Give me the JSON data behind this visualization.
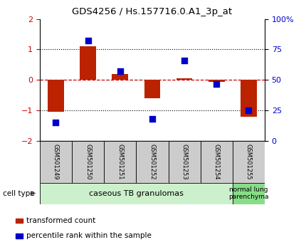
{
  "title": "GDS4256 / Hs.157716.0.A1_3p_at",
  "samples": [
    "GSM501249",
    "GSM501250",
    "GSM501251",
    "GSM501252",
    "GSM501253",
    "GSM501254",
    "GSM501255"
  ],
  "transformed_counts": [
    -1.05,
    1.1,
    0.2,
    -0.6,
    0.05,
    -0.05,
    -1.2
  ],
  "percentile_ranks": [
    15,
    82,
    57,
    18,
    66,
    47,
    25
  ],
  "group1_indices": [
    0,
    1,
    2,
    3,
    4,
    5
  ],
  "group2_indices": [
    6
  ],
  "group1_label": "caseous TB granulomas",
  "group2_label": "normal lung\nparenchyma",
  "sample_box_color": "#cccccc",
  "group1_color": "#ccf0cc",
  "group2_color": "#88dd88",
  "bar_color": "#bb2200",
  "dot_color": "#0000cc",
  "ylim_left": [
    -2,
    2
  ],
  "ylim_right": [
    0,
    100
  ],
  "right_ticks": [
    0,
    25,
    50,
    75,
    100
  ],
  "right_tick_labels": [
    "0",
    "25",
    "50",
    "75",
    "100%"
  ],
  "left_ticks": [
    -2,
    -1,
    0,
    1,
    2
  ],
  "dotted_lines_black": [
    -1,
    1
  ],
  "zero_line_color": "#cc0000",
  "cell_type_label": "cell type",
  "legend_bar_label": "transformed count",
  "legend_dot_label": "percentile rank within the sample",
  "figsize": [
    4.3,
    3.54
  ],
  "dpi": 100
}
